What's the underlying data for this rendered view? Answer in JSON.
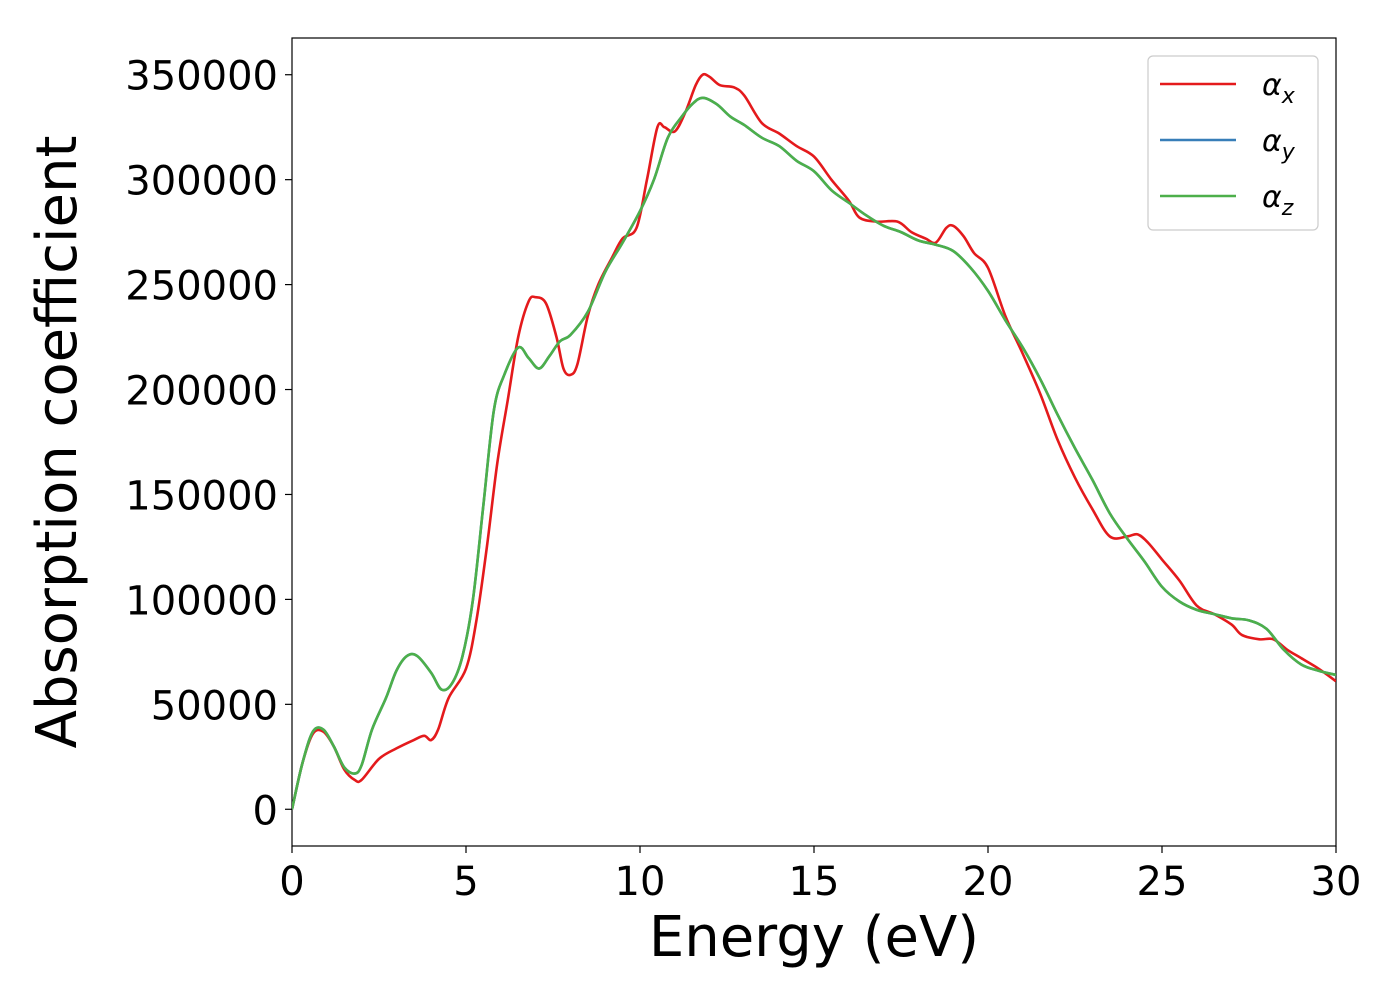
{
  "chart_data": {
    "type": "line",
    "title": "",
    "xlabel": "Energy (eV)",
    "ylabel": "Absorption coefficient",
    "xlim": [
      0,
      30
    ],
    "ylim": [
      -17500,
      367500
    ],
    "x_ticks": [
      0,
      5,
      10,
      15,
      20,
      25,
      30
    ],
    "y_ticks": [
      0,
      50000,
      100000,
      150000,
      200000,
      250000,
      300000,
      350000
    ],
    "grid": false,
    "legend_position": "top-right",
    "series": [
      {
        "name": "α_x",
        "label_main": "α",
        "label_sub": "x",
        "color": "#e41a1c",
        "points": [
          [
            0,
            0
          ],
          [
            0.3,
            22000
          ],
          [
            0.6,
            36000
          ],
          [
            0.9,
            37000
          ],
          [
            1.2,
            30000
          ],
          [
            1.5,
            19000
          ],
          [
            1.8,
            14000
          ],
          [
            2.0,
            14000
          ],
          [
            2.5,
            24000
          ],
          [
            3.0,
            29000
          ],
          [
            3.5,
            33000
          ],
          [
            3.8,
            35000
          ],
          [
            4.0,
            33000
          ],
          [
            4.2,
            38000
          ],
          [
            4.5,
            53000
          ],
          [
            5.0,
            67000
          ],
          [
            5.3,
            90000
          ],
          [
            5.6,
            125000
          ],
          [
            5.9,
            165000
          ],
          [
            6.2,
            195000
          ],
          [
            6.5,
            225000
          ],
          [
            6.8,
            242000
          ],
          [
            7.0,
            244000
          ],
          [
            7.3,
            241000
          ],
          [
            7.6,
            225000
          ],
          [
            7.8,
            210000
          ],
          [
            8.0,
            207000
          ],
          [
            8.2,
            212000
          ],
          [
            8.5,
            235000
          ],
          [
            8.8,
            250000
          ],
          [
            9.2,
            263000
          ],
          [
            9.5,
            272000
          ],
          [
            9.9,
            277000
          ],
          [
            10.2,
            300000
          ],
          [
            10.5,
            325000
          ],
          [
            10.7,
            325000
          ],
          [
            11.0,
            323000
          ],
          [
            11.3,
            332000
          ],
          [
            11.6,
            345000
          ],
          [
            11.8,
            350000
          ],
          [
            12.0,
            349000
          ],
          [
            12.3,
            345000
          ],
          [
            12.7,
            344000
          ],
          [
            13.0,
            340000
          ],
          [
            13.5,
            327000
          ],
          [
            14.0,
            322000
          ],
          [
            14.5,
            316000
          ],
          [
            15.0,
            311000
          ],
          [
            15.5,
            300000
          ],
          [
            16.0,
            290000
          ],
          [
            16.3,
            282000
          ],
          [
            16.8,
            280000
          ],
          [
            17.4,
            280000
          ],
          [
            17.8,
            275000
          ],
          [
            18.2,
            272000
          ],
          [
            18.5,
            270000
          ],
          [
            18.8,
            277000
          ],
          [
            19.0,
            278000
          ],
          [
            19.3,
            273000
          ],
          [
            19.6,
            265000
          ],
          [
            20.0,
            258000
          ],
          [
            20.5,
            235000
          ],
          [
            21.0,
            217000
          ],
          [
            21.5,
            198000
          ],
          [
            22.0,
            176000
          ],
          [
            22.5,
            158000
          ],
          [
            23.0,
            143000
          ],
          [
            23.5,
            130000
          ],
          [
            24.0,
            130000
          ],
          [
            24.3,
            131000
          ],
          [
            24.6,
            127000
          ],
          [
            25.0,
            119000
          ],
          [
            25.5,
            109000
          ],
          [
            26.0,
            97000
          ],
          [
            26.5,
            93000
          ],
          [
            27.0,
            88000
          ],
          [
            27.3,
            83000
          ],
          [
            27.8,
            81000
          ],
          [
            28.2,
            81000
          ],
          [
            28.6,
            76000
          ],
          [
            29.0,
            72000
          ],
          [
            29.5,
            67000
          ],
          [
            30.0,
            61000
          ]
        ]
      },
      {
        "name": "α_y",
        "label_main": "α",
        "label_sub": "y",
        "color": "#377eb8",
        "points": [
          [
            0,
            0
          ],
          [
            0.3,
            22000
          ],
          [
            0.6,
            37000
          ],
          [
            0.9,
            38000
          ],
          [
            1.2,
            30000
          ],
          [
            1.5,
            20000
          ],
          [
            1.8,
            17000
          ],
          [
            2.0,
            21000
          ],
          [
            2.3,
            38000
          ],
          [
            2.7,
            53000
          ],
          [
            3.0,
            66000
          ],
          [
            3.3,
            73000
          ],
          [
            3.6,
            73000
          ],
          [
            4.0,
            65000
          ],
          [
            4.3,
            57000
          ],
          [
            4.6,
            60000
          ],
          [
            4.9,
            73000
          ],
          [
            5.2,
            100000
          ],
          [
            5.5,
            145000
          ],
          [
            5.8,
            190000
          ],
          [
            6.1,
            207000
          ],
          [
            6.5,
            220000
          ],
          [
            6.8,
            215000
          ],
          [
            7.1,
            210000
          ],
          [
            7.4,
            216000
          ],
          [
            7.7,
            223000
          ],
          [
            8.0,
            226000
          ],
          [
            8.5,
            237000
          ],
          [
            9.0,
            256000
          ],
          [
            9.5,
            270000
          ],
          [
            10.0,
            285000
          ],
          [
            10.4,
            300000
          ],
          [
            10.8,
            320000
          ],
          [
            11.2,
            330000
          ],
          [
            11.5,
            336000
          ],
          [
            11.8,
            339000
          ],
          [
            12.2,
            336000
          ],
          [
            12.6,
            330000
          ],
          [
            13.0,
            326000
          ],
          [
            13.5,
            320000
          ],
          [
            14.0,
            316000
          ],
          [
            14.5,
            309000
          ],
          [
            15.0,
            304000
          ],
          [
            15.5,
            295000
          ],
          [
            16.0,
            289000
          ],
          [
            16.5,
            283000
          ],
          [
            17.0,
            278000
          ],
          [
            17.5,
            275000
          ],
          [
            18.0,
            271000
          ],
          [
            18.5,
            269000
          ],
          [
            19.0,
            266000
          ],
          [
            19.5,
            258000
          ],
          [
            20.0,
            247000
          ],
          [
            20.5,
            233000
          ],
          [
            21.0,
            220000
          ],
          [
            21.5,
            205000
          ],
          [
            22.0,
            188000
          ],
          [
            22.5,
            172000
          ],
          [
            23.0,
            157000
          ],
          [
            23.5,
            141000
          ],
          [
            24.0,
            129000
          ],
          [
            24.5,
            118000
          ],
          [
            25.0,
            106000
          ],
          [
            25.5,
            99000
          ],
          [
            26.0,
            95000
          ],
          [
            26.5,
            93000
          ],
          [
            27.0,
            91000
          ],
          [
            27.5,
            90000
          ],
          [
            28.0,
            86000
          ],
          [
            28.5,
            76000
          ],
          [
            29.0,
            69000
          ],
          [
            29.5,
            66000
          ],
          [
            30.0,
            64000
          ]
        ]
      },
      {
        "name": "α_z",
        "label_main": "α",
        "label_sub": "z",
        "color": "#4daf4a",
        "points": [
          [
            0,
            0
          ],
          [
            0.3,
            22000
          ],
          [
            0.6,
            37000
          ],
          [
            0.9,
            38000
          ],
          [
            1.2,
            30000
          ],
          [
            1.5,
            20000
          ],
          [
            1.8,
            17000
          ],
          [
            2.0,
            21000
          ],
          [
            2.3,
            38000
          ],
          [
            2.7,
            53000
          ],
          [
            3.0,
            66000
          ],
          [
            3.3,
            73000
          ],
          [
            3.6,
            73000
          ],
          [
            4.0,
            65000
          ],
          [
            4.3,
            57000
          ],
          [
            4.6,
            60000
          ],
          [
            4.9,
            73000
          ],
          [
            5.2,
            100000
          ],
          [
            5.5,
            145000
          ],
          [
            5.8,
            190000
          ],
          [
            6.1,
            207000
          ],
          [
            6.5,
            220000
          ],
          [
            6.8,
            215000
          ],
          [
            7.1,
            210000
          ],
          [
            7.4,
            216000
          ],
          [
            7.7,
            223000
          ],
          [
            8.0,
            226000
          ],
          [
            8.5,
            237000
          ],
          [
            9.0,
            256000
          ],
          [
            9.5,
            270000
          ],
          [
            10.0,
            285000
          ],
          [
            10.4,
            300000
          ],
          [
            10.8,
            320000
          ],
          [
            11.2,
            330000
          ],
          [
            11.5,
            336000
          ],
          [
            11.8,
            339000
          ],
          [
            12.2,
            336000
          ],
          [
            12.6,
            330000
          ],
          [
            13.0,
            326000
          ],
          [
            13.5,
            320000
          ],
          [
            14.0,
            316000
          ],
          [
            14.5,
            309000
          ],
          [
            15.0,
            304000
          ],
          [
            15.5,
            295000
          ],
          [
            16.0,
            289000
          ],
          [
            16.5,
            283000
          ],
          [
            17.0,
            278000
          ],
          [
            17.5,
            275000
          ],
          [
            18.0,
            271000
          ],
          [
            18.5,
            269000
          ],
          [
            19.0,
            266000
          ],
          [
            19.5,
            258000
          ],
          [
            20.0,
            247000
          ],
          [
            20.5,
            233000
          ],
          [
            21.0,
            220000
          ],
          [
            21.5,
            205000
          ],
          [
            22.0,
            188000
          ],
          [
            22.5,
            172000
          ],
          [
            23.0,
            157000
          ],
          [
            23.5,
            141000
          ],
          [
            24.0,
            129000
          ],
          [
            24.5,
            118000
          ],
          [
            25.0,
            106000
          ],
          [
            25.5,
            99000
          ],
          [
            26.0,
            95000
          ],
          [
            26.5,
            93000
          ],
          [
            27.0,
            91000
          ],
          [
            27.5,
            90000
          ],
          [
            28.0,
            86000
          ],
          [
            28.5,
            76000
          ],
          [
            29.0,
            69000
          ],
          [
            29.5,
            66000
          ],
          [
            30.0,
            64000
          ]
        ]
      }
    ]
  }
}
